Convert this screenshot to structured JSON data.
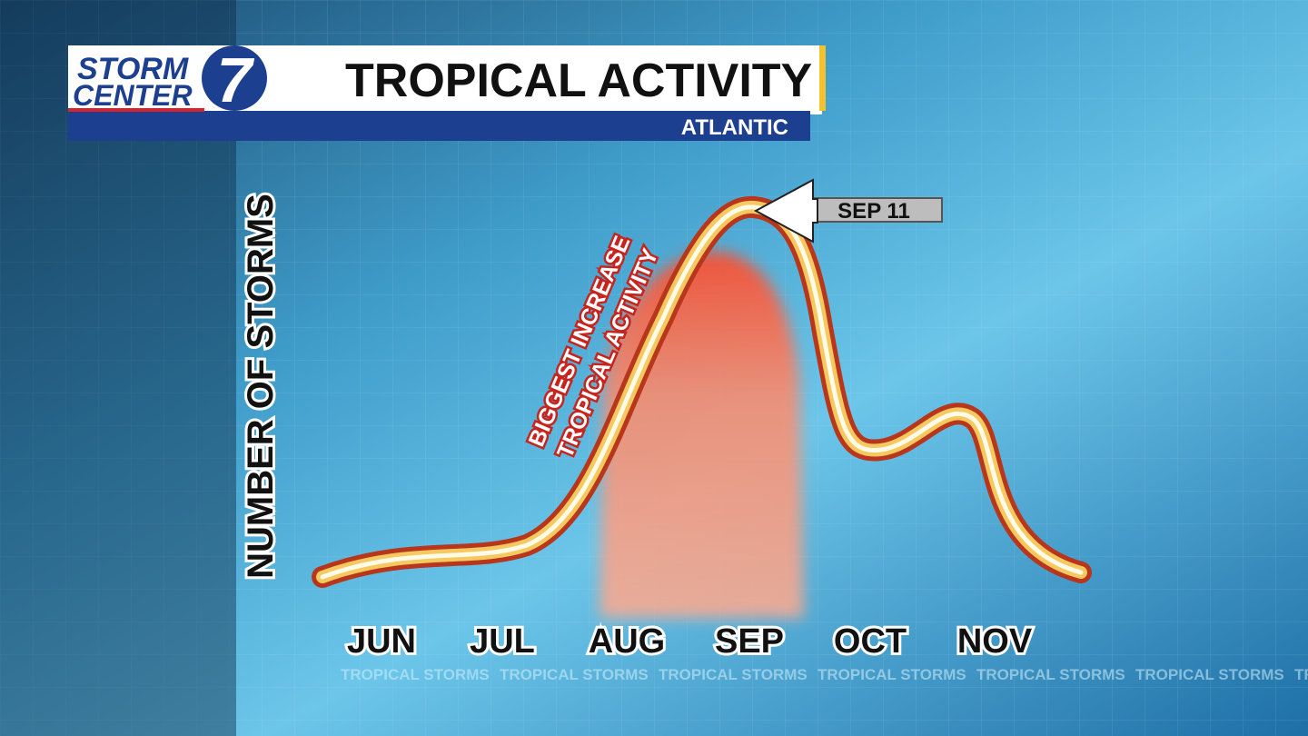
{
  "logo": {
    "line1": "STORM",
    "line2": "CENTER",
    "number": "7"
  },
  "header": {
    "title": "TROPICAL ACTIVITY",
    "subtitle": "ATLANTIC"
  },
  "graphic": {
    "y_label": "NUMBER OF STORMS",
    "months": [
      "JUN",
      "JUL",
      "AUG",
      "SEP",
      "OCT",
      "NOV"
    ],
    "annotation": {
      "line1": "BIGGEST INCREASE",
      "line2": "TROPICAL ACTIVITY"
    },
    "peak_label": "SEP 11"
  },
  "ticker": "TROPICAL STORMS"
}
